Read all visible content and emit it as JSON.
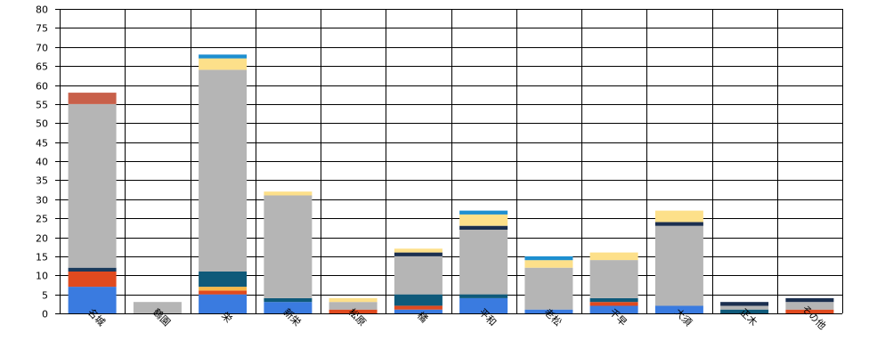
{
  "chart_data": {
    "type": "bar",
    "stacked": true,
    "categories": [
      "名城",
      "鶴園",
      "栄",
      "新栄",
      "松原",
      "橘",
      "平和",
      "老松",
      "千早",
      "大須",
      "正木",
      "その他"
    ],
    "ylim": [
      0,
      80
    ],
    "yticks": [
      0,
      5,
      10,
      15,
      20,
      25,
      30,
      35,
      40,
      45,
      50,
      55,
      60,
      65,
      70,
      75,
      80
    ],
    "grid": true,
    "series": [
      {
        "color": "#3a7be0",
        "values": [
          7,
          0,
          5,
          3,
          0,
          1,
          4,
          1,
          2,
          2,
          0,
          0
        ]
      },
      {
        "color": "#e04a1f",
        "values": [
          4,
          0,
          1,
          0,
          1,
          1,
          0,
          0,
          1,
          0,
          0,
          1
        ]
      },
      {
        "color": "#f7b84a",
        "values": [
          0,
          0,
          1,
          0,
          0,
          0,
          0,
          0,
          0,
          0,
          0,
          0
        ]
      },
      {
        "color": "#0f5a7a",
        "values": [
          0,
          0,
          4,
          1,
          0,
          3,
          1,
          0,
          1,
          0,
          1,
          0
        ]
      },
      {
        "color": "#1a3a5c",
        "values": [
          1,
          0,
          0,
          0,
          0,
          0,
          0,
          0,
          0,
          0,
          0,
          0
        ]
      },
      {
        "color": "#b5b5b5",
        "values": [
          43,
          3,
          53,
          27,
          2,
          10,
          17,
          11,
          10,
          21,
          1,
          2
        ]
      },
      {
        "color": "#1b2f4f",
        "values": [
          0,
          0,
          0,
          0,
          0,
          1,
          1,
          0,
          0,
          1,
          1,
          1
        ]
      },
      {
        "color": "#fde08a",
        "values": [
          0,
          0,
          3,
          1,
          1,
          1,
          3,
          2,
          2,
          3,
          0,
          0
        ]
      },
      {
        "color": "#1e8fd0",
        "values": [
          0,
          0,
          1,
          0,
          0,
          0,
          1,
          1,
          0,
          0,
          0,
          0
        ]
      },
      {
        "color": "#c8604a",
        "values": [
          3,
          0,
          0,
          0,
          0,
          0,
          0,
          0,
          0,
          0,
          0,
          0
        ]
      }
    ]
  }
}
